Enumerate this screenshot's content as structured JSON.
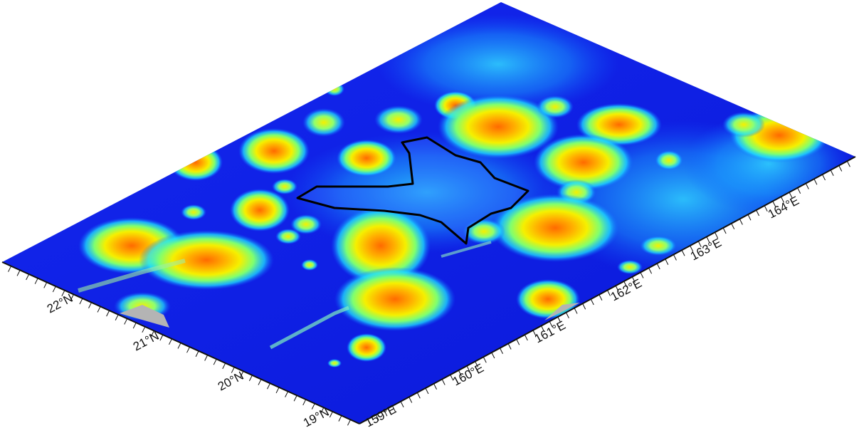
{
  "map": {
    "type": "3d-bathymetric-relief",
    "colors": {
      "deep": "#0a1ee6",
      "shallow": "#00c8ff",
      "mid": "#7fff7f",
      "high": "#ffe000",
      "peak": "#ff7a00",
      "outline": "#000000",
      "land_base": "#b0b0b0"
    },
    "latitude_ticks": [
      "22°N",
      "21°N",
      "20°N",
      "19°N"
    ],
    "longitude_ticks": [
      "159°E",
      "160°E",
      "161°E",
      "162°E",
      "163°E",
      "164°E"
    ]
  }
}
